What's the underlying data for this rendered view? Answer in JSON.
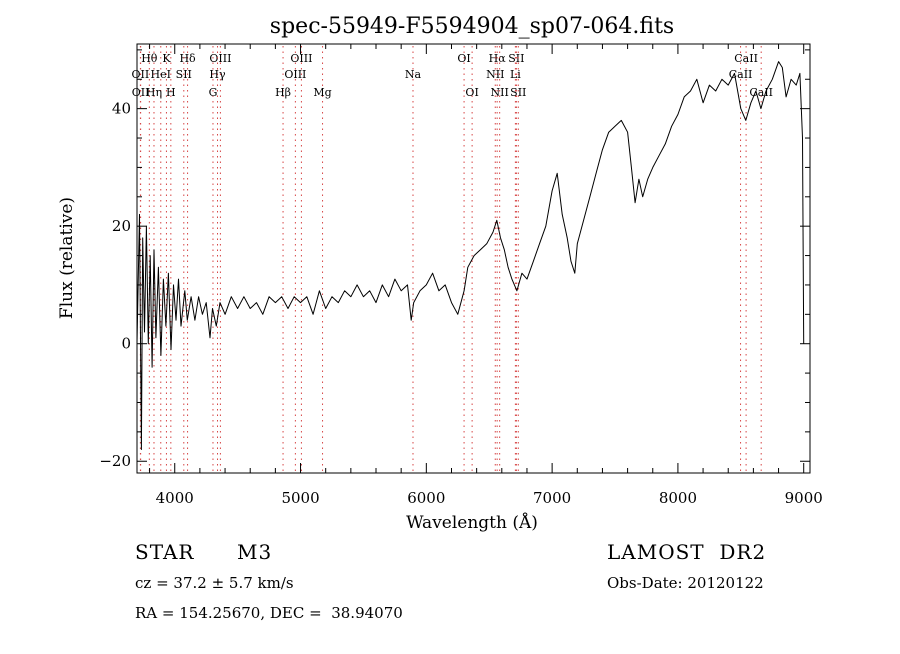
{
  "chart_data": {
    "type": "line",
    "title": "spec-55949-F5594904_sp07-064.fits",
    "xlabel": "Wavelength (Å)",
    "ylabel": "Flux (relative)",
    "xlim": [
      3700,
      9050
    ],
    "ylim": [
      -22,
      51
    ],
    "x_ticks": [
      4000,
      5000,
      6000,
      7000,
      8000,
      9000
    ],
    "y_ticks": [
      -20,
      0,
      20,
      40
    ],
    "grid": false,
    "series": [
      {
        "points": [
          [
            3700,
            0
          ],
          [
            3720,
            22
          ],
          [
            3735,
            -18
          ],
          [
            3745,
            18
          ],
          [
            3760,
            2
          ],
          [
            3775,
            20
          ],
          [
            3790,
            0
          ],
          [
            3805,
            15
          ],
          [
            3820,
            -4
          ],
          [
            3835,
            16
          ],
          [
            3850,
            1
          ],
          [
            3870,
            13
          ],
          [
            3890,
            -2
          ],
          [
            3910,
            11
          ],
          [
            3930,
            3
          ],
          [
            3950,
            12
          ],
          [
            3970,
            -1
          ],
          [
            3990,
            10
          ],
          [
            4010,
            4
          ],
          [
            4030,
            11
          ],
          [
            4050,
            3
          ],
          [
            4080,
            9
          ],
          [
            4100,
            4
          ],
          [
            4130,
            8
          ],
          [
            4160,
            4
          ],
          [
            4190,
            8
          ],
          [
            4220,
            5
          ],
          [
            4250,
            7
          ],
          [
            4280,
            1
          ],
          [
            4300,
            6
          ],
          [
            4330,
            3
          ],
          [
            4360,
            7
          ],
          [
            4400,
            5
          ],
          [
            4450,
            8
          ],
          [
            4500,
            6
          ],
          [
            4550,
            8
          ],
          [
            4600,
            6
          ],
          [
            4650,
            7
          ],
          [
            4700,
            5
          ],
          [
            4750,
            8
          ],
          [
            4800,
            7
          ],
          [
            4850,
            8
          ],
          [
            4900,
            6
          ],
          [
            4950,
            8
          ],
          [
            5000,
            7
          ],
          [
            5050,
            8
          ],
          [
            5100,
            5
          ],
          [
            5150,
            9
          ],
          [
            5200,
            6
          ],
          [
            5250,
            8
          ],
          [
            5300,
            7
          ],
          [
            5350,
            9
          ],
          [
            5400,
            8
          ],
          [
            5450,
            10
          ],
          [
            5500,
            8
          ],
          [
            5550,
            9
          ],
          [
            5600,
            7
          ],
          [
            5650,
            10
          ],
          [
            5700,
            8
          ],
          [
            5750,
            11
          ],
          [
            5800,
            9
          ],
          [
            5850,
            10
          ],
          [
            5880,
            4
          ],
          [
            5900,
            7
          ],
          [
            5950,
            9
          ],
          [
            6000,
            10
          ],
          [
            6050,
            12
          ],
          [
            6100,
            9
          ],
          [
            6150,
            10
          ],
          [
            6200,
            7
          ],
          [
            6250,
            5
          ],
          [
            6300,
            9
          ],
          [
            6330,
            13
          ],
          [
            6380,
            15
          ],
          [
            6430,
            16
          ],
          [
            6480,
            17
          ],
          [
            6530,
            19
          ],
          [
            6560,
            21
          ],
          [
            6590,
            18
          ],
          [
            6620,
            16
          ],
          [
            6650,
            13
          ],
          [
            6680,
            11
          ],
          [
            6720,
            9
          ],
          [
            6760,
            12
          ],
          [
            6800,
            11
          ],
          [
            6850,
            14
          ],
          [
            6900,
            17
          ],
          [
            6950,
            20
          ],
          [
            7000,
            26
          ],
          [
            7040,
            29
          ],
          [
            7080,
            22
          ],
          [
            7120,
            18
          ],
          [
            7150,
            14
          ],
          [
            7180,
            12
          ],
          [
            7200,
            17
          ],
          [
            7250,
            21
          ],
          [
            7300,
            25
          ],
          [
            7350,
            29
          ],
          [
            7400,
            33
          ],
          [
            7450,
            36
          ],
          [
            7500,
            37
          ],
          [
            7550,
            38
          ],
          [
            7600,
            36
          ],
          [
            7630,
            30
          ],
          [
            7660,
            24
          ],
          [
            7690,
            28
          ],
          [
            7720,
            25
          ],
          [
            7760,
            28
          ],
          [
            7800,
            30
          ],
          [
            7850,
            32
          ],
          [
            7900,
            34
          ],
          [
            7950,
            37
          ],
          [
            8000,
            39
          ],
          [
            8050,
            42
          ],
          [
            8100,
            43
          ],
          [
            8150,
            45
          ],
          [
            8200,
            41
          ],
          [
            8250,
            44
          ],
          [
            8300,
            43
          ],
          [
            8350,
            45
          ],
          [
            8400,
            44
          ],
          [
            8450,
            46
          ],
          [
            8500,
            40
          ],
          [
            8540,
            38
          ],
          [
            8580,
            41
          ],
          [
            8620,
            43
          ],
          [
            8660,
            40
          ],
          [
            8700,
            43
          ],
          [
            8750,
            45
          ],
          [
            8800,
            48
          ],
          [
            8830,
            47
          ],
          [
            8860,
            42
          ],
          [
            8900,
            45
          ],
          [
            8940,
            44
          ],
          [
            8970,
            46
          ],
          [
            8990,
            35
          ],
          [
            9000,
            0
          ]
        ]
      }
    ],
    "line_markers": [
      {
        "label": "Hθ",
        "x": 3798,
        "row": 1
      },
      {
        "label": "OII",
        "x": 3727,
        "row": 2
      },
      {
        "label": "OII",
        "x": 3729,
        "row": 3
      },
      {
        "label": "K",
        "x": 3934,
        "row": 1
      },
      {
        "label": "HeI",
        "x": 3889,
        "row": 2
      },
      {
        "label": "Hη",
        "x": 3835,
        "row": 3
      },
      {
        "label": "Hδ",
        "x": 4102,
        "row": 1
      },
      {
        "label": "SII",
        "x": 4072,
        "row": 2
      },
      {
        "label": "H",
        "x": 3969,
        "row": 3
      },
      {
        "label": "OIII",
        "x": 4363,
        "row": 1
      },
      {
        "label": "Hγ",
        "x": 4340,
        "row": 2
      },
      {
        "label": "G",
        "x": 4304,
        "row": 3
      },
      {
        "label": "OIII",
        "x": 5007,
        "row": 1
      },
      {
        "label": "OIII",
        "x": 4959,
        "row": 2
      },
      {
        "label": "Hβ",
        "x": 4861,
        "row": 3
      },
      {
        "label": "Mg",
        "x": 5175,
        "row": 3
      },
      {
        "label": "Na",
        "x": 5894,
        "row": 2
      },
      {
        "label": "OI",
        "x": 6300,
        "row": 1
      },
      {
        "label": "OI",
        "x": 6364,
        "row": 3
      },
      {
        "label": "Hα",
        "x": 6563,
        "row": 1
      },
      {
        "label": "NII",
        "x": 6548,
        "row": 2
      },
      {
        "label": "NII",
        "x": 6583,
        "row": 3
      },
      {
        "label": "SII",
        "x": 6716,
        "row": 1
      },
      {
        "label": "Li",
        "x": 6708,
        "row": 2
      },
      {
        "label": "SII",
        "x": 6731,
        "row": 3
      },
      {
        "label": "CaII",
        "x": 8542,
        "row": 1
      },
      {
        "label": "CaII",
        "x": 8498,
        "row": 2
      },
      {
        "label": "CaII",
        "x": 8662,
        "row": 3
      }
    ]
  },
  "info": {
    "object_class": "STAR",
    "subclass": "M3",
    "survey": "LAMOST  DR2",
    "redshift": "cz = 37.2 ± 5.7 km/s",
    "obs_date": "Obs-Date: 20120122",
    "coords": "RA = 154.25670, DEC =  38.94070"
  },
  "colors": {
    "line": "#000000",
    "marker": "#d64545",
    "axis": "#000000",
    "background": "#ffffff"
  }
}
